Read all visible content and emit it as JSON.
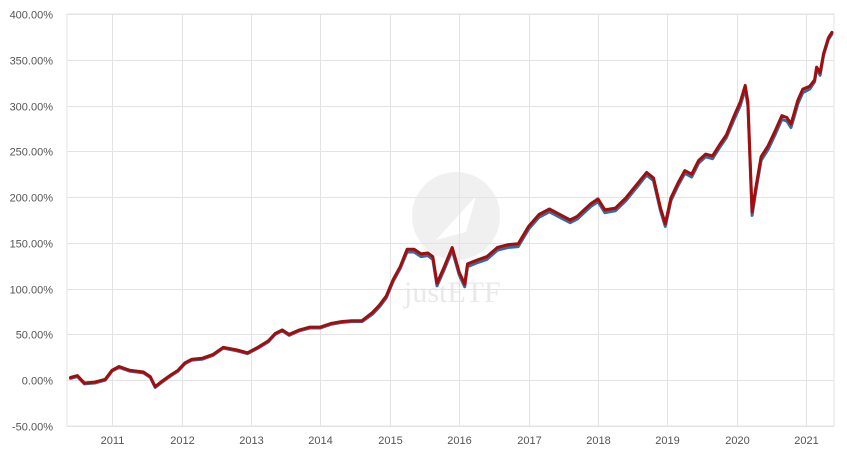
{
  "chart_data": {
    "type": "line",
    "title": "",
    "xlabel": "",
    "ylabel": "",
    "ylim": [
      -50,
      400
    ],
    "y_ticks": [
      -50,
      0,
      50,
      100,
      150,
      200,
      250,
      300,
      350,
      400
    ],
    "y_tick_labels": [
      "-50.00%",
      "0.00%",
      "50.00%",
      "100.00%",
      "150.00%",
      "200.00%",
      "250.00%",
      "300.00%",
      "350.00%",
      "400.00%"
    ],
    "x_range": [
      2010.35,
      2021.4
    ],
    "x_ticks": [
      2011,
      2012,
      2013,
      2014,
      2015,
      2016,
      2017,
      2018,
      2019,
      2020,
      2021
    ],
    "x_tick_labels": [
      "2011",
      "2012",
      "2013",
      "2014",
      "2015",
      "2016",
      "2017",
      "2018",
      "2019",
      "2020",
      "2021"
    ],
    "grid": true,
    "watermark": "justETF",
    "series": [
      {
        "color": "#2e6da4",
        "points": [
          [
            2010.4,
            2
          ],
          [
            2010.5,
            4
          ],
          [
            2010.6,
            -4
          ],
          [
            2010.75,
            -3
          ],
          [
            2010.9,
            0
          ],
          [
            2011.0,
            10
          ],
          [
            2011.1,
            14
          ],
          [
            2011.25,
            10
          ],
          [
            2011.45,
            8
          ],
          [
            2011.55,
            3
          ],
          [
            2011.62,
            -8
          ],
          [
            2011.72,
            -2
          ],
          [
            2011.85,
            5
          ],
          [
            2011.95,
            10
          ],
          [
            2012.05,
            18
          ],
          [
            2012.15,
            22
          ],
          [
            2012.3,
            23
          ],
          [
            2012.45,
            27
          ],
          [
            2012.6,
            35
          ],
          [
            2012.8,
            32
          ],
          [
            2012.95,
            29
          ],
          [
            2013.1,
            35
          ],
          [
            2013.25,
            42
          ],
          [
            2013.35,
            50
          ],
          [
            2013.45,
            54
          ],
          [
            2013.55,
            49
          ],
          [
            2013.7,
            54
          ],
          [
            2013.85,
            57
          ],
          [
            2014.0,
            57
          ],
          [
            2014.15,
            61
          ],
          [
            2014.3,
            63
          ],
          [
            2014.45,
            64
          ],
          [
            2014.6,
            64
          ],
          [
            2014.75,
            72
          ],
          [
            2014.85,
            80
          ],
          [
            2014.95,
            90
          ],
          [
            2015.05,
            108
          ],
          [
            2015.15,
            122
          ],
          [
            2015.25,
            140
          ],
          [
            2015.35,
            140
          ],
          [
            2015.45,
            135
          ],
          [
            2015.55,
            136
          ],
          [
            2015.62,
            132
          ],
          [
            2015.68,
            103
          ],
          [
            2015.78,
            120
          ],
          [
            2015.9,
            142
          ],
          [
            2016.0,
            115
          ],
          [
            2016.08,
            102
          ],
          [
            2016.12,
            124
          ],
          [
            2016.25,
            128
          ],
          [
            2016.4,
            132
          ],
          [
            2016.55,
            142
          ],
          [
            2016.7,
            145
          ],
          [
            2016.85,
            146
          ],
          [
            2017.0,
            165
          ],
          [
            2017.15,
            178
          ],
          [
            2017.3,
            184
          ],
          [
            2017.45,
            178
          ],
          [
            2017.6,
            172
          ],
          [
            2017.7,
            176
          ],
          [
            2017.8,
            183
          ],
          [
            2017.9,
            190
          ],
          [
            2018.0,
            195
          ],
          [
            2018.1,
            183
          ],
          [
            2018.25,
            185
          ],
          [
            2018.4,
            196
          ],
          [
            2018.55,
            210
          ],
          [
            2018.7,
            224
          ],
          [
            2018.8,
            218
          ],
          [
            2018.9,
            185
          ],
          [
            2018.97,
            168
          ],
          [
            2019.05,
            196
          ],
          [
            2019.15,
            212
          ],
          [
            2019.25,
            226
          ],
          [
            2019.35,
            222
          ],
          [
            2019.45,
            237
          ],
          [
            2019.55,
            244
          ],
          [
            2019.65,
            242
          ],
          [
            2019.75,
            254
          ],
          [
            2019.85,
            265
          ],
          [
            2019.95,
            283
          ],
          [
            2020.05,
            300
          ],
          [
            2020.12,
            318
          ],
          [
            2020.16,
            300
          ],
          [
            2020.22,
            180
          ],
          [
            2020.27,
            205
          ],
          [
            2020.35,
            240
          ],
          [
            2020.45,
            252
          ],
          [
            2020.55,
            268
          ],
          [
            2020.65,
            285
          ],
          [
            2020.72,
            283
          ],
          [
            2020.78,
            276
          ],
          [
            2020.82,
            286
          ],
          [
            2020.88,
            302
          ],
          [
            2020.95,
            314
          ],
          [
            2021.05,
            318
          ],
          [
            2021.12,
            326
          ],
          [
            2021.15,
            340
          ],
          [
            2021.2,
            333
          ],
          [
            2021.25,
            355
          ],
          [
            2021.32,
            372
          ],
          [
            2021.37,
            378
          ]
        ]
      },
      {
        "color": "#a50d0d",
        "points": [
          [
            2010.4,
            3
          ],
          [
            2010.5,
            5
          ],
          [
            2010.6,
            -3
          ],
          [
            2010.75,
            -2
          ],
          [
            2010.9,
            1
          ],
          [
            2011.0,
            11
          ],
          [
            2011.1,
            15
          ],
          [
            2011.25,
            11
          ],
          [
            2011.45,
            9
          ],
          [
            2011.55,
            4
          ],
          [
            2011.62,
            -7
          ],
          [
            2011.72,
            -1
          ],
          [
            2011.85,
            6
          ],
          [
            2011.95,
            11
          ],
          [
            2012.05,
            19
          ],
          [
            2012.15,
            23
          ],
          [
            2012.3,
            24
          ],
          [
            2012.45,
            28
          ],
          [
            2012.6,
            36
          ],
          [
            2012.8,
            33
          ],
          [
            2012.95,
            30
          ],
          [
            2013.1,
            36
          ],
          [
            2013.25,
            43
          ],
          [
            2013.35,
            51
          ],
          [
            2013.45,
            55
          ],
          [
            2013.55,
            50
          ],
          [
            2013.7,
            55
          ],
          [
            2013.85,
            58
          ],
          [
            2014.0,
            58
          ],
          [
            2014.15,
            62
          ],
          [
            2014.3,
            64
          ],
          [
            2014.45,
            65
          ],
          [
            2014.6,
            65
          ],
          [
            2014.75,
            74
          ],
          [
            2014.85,
            82
          ],
          [
            2014.95,
            92
          ],
          [
            2015.05,
            110
          ],
          [
            2015.15,
            124
          ],
          [
            2015.25,
            143
          ],
          [
            2015.35,
            143
          ],
          [
            2015.45,
            138
          ],
          [
            2015.55,
            139
          ],
          [
            2015.62,
            135
          ],
          [
            2015.68,
            106
          ],
          [
            2015.78,
            123
          ],
          [
            2015.9,
            145
          ],
          [
            2016.0,
            118
          ],
          [
            2016.08,
            105
          ],
          [
            2016.12,
            127
          ],
          [
            2016.25,
            131
          ],
          [
            2016.4,
            135
          ],
          [
            2016.55,
            145
          ],
          [
            2016.7,
            148
          ],
          [
            2016.85,
            149
          ],
          [
            2017.0,
            168
          ],
          [
            2017.15,
            181
          ],
          [
            2017.3,
            187
          ],
          [
            2017.45,
            181
          ],
          [
            2017.6,
            175
          ],
          [
            2017.7,
            179
          ],
          [
            2017.8,
            186
          ],
          [
            2017.9,
            193
          ],
          [
            2018.0,
            198
          ],
          [
            2018.1,
            186
          ],
          [
            2018.25,
            188
          ],
          [
            2018.4,
            199
          ],
          [
            2018.55,
            213
          ],
          [
            2018.7,
            227
          ],
          [
            2018.8,
            221
          ],
          [
            2018.9,
            188
          ],
          [
            2018.97,
            171
          ],
          [
            2019.05,
            199
          ],
          [
            2019.15,
            215
          ],
          [
            2019.25,
            229
          ],
          [
            2019.35,
            225
          ],
          [
            2019.45,
            240
          ],
          [
            2019.55,
            247
          ],
          [
            2019.65,
            245
          ],
          [
            2019.75,
            257
          ],
          [
            2019.85,
            268
          ],
          [
            2019.95,
            287
          ],
          [
            2020.05,
            304
          ],
          [
            2020.12,
            322
          ],
          [
            2020.16,
            304
          ],
          [
            2020.22,
            184
          ],
          [
            2020.27,
            209
          ],
          [
            2020.35,
            244
          ],
          [
            2020.45,
            256
          ],
          [
            2020.55,
            272
          ],
          [
            2020.65,
            289
          ],
          [
            2020.72,
            287
          ],
          [
            2020.78,
            280
          ],
          [
            2020.82,
            290
          ],
          [
            2020.88,
            306
          ],
          [
            2020.95,
            318
          ],
          [
            2021.05,
            321
          ],
          [
            2021.12,
            328
          ],
          [
            2021.15,
            342
          ],
          [
            2021.2,
            336
          ],
          [
            2021.25,
            357
          ],
          [
            2021.32,
            374
          ],
          [
            2021.37,
            380
          ]
        ]
      }
    ]
  }
}
